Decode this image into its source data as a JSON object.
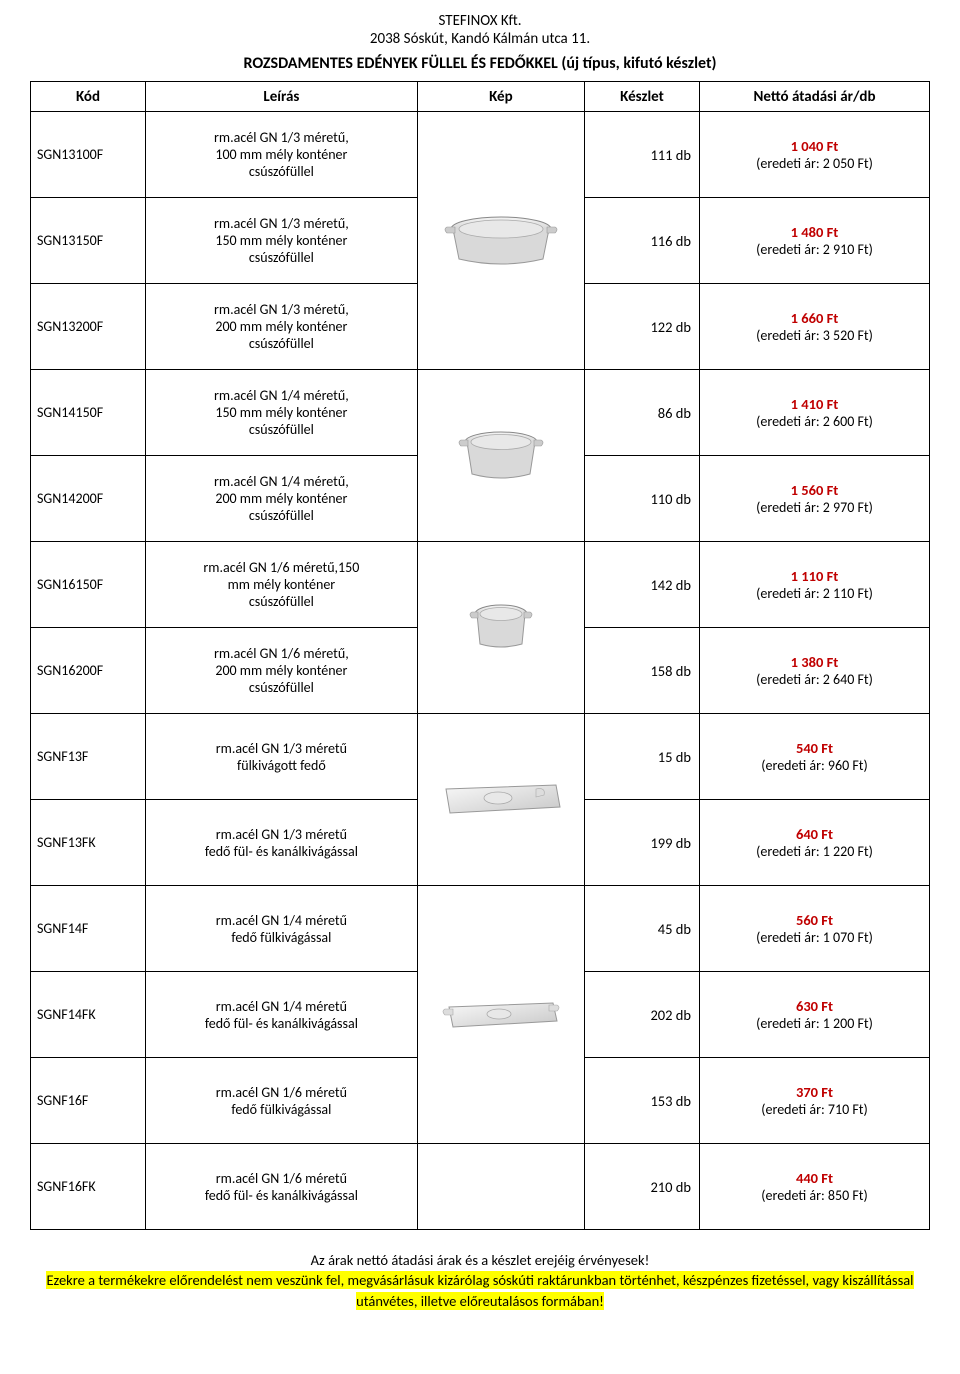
{
  "header": {
    "company": "STEFINOX Kft.",
    "address": "2038 Sóskút, Kandó Kálmán utca 11.",
    "title": "ROZSDAMENTES EDÉNYEK FÜLLEL ÉS FEDŐKKEL (új típus, kifutó készlet)"
  },
  "columns": {
    "kod": "Kód",
    "leiras": "Leírás",
    "kep": "Kép",
    "keszlet": "Készlet",
    "ar": "Nettó átadási ár/db"
  },
  "rows": [
    {
      "kod": "SGN13100F",
      "leiras": "rm.acél GN 1/3 méretű,\n100 mm mély konténer\ncsúszófüllel",
      "keszlet": "111 db",
      "price": "1 040 Ft",
      "orig": "(eredeti ár: 2 050 Ft)",
      "img_group": 0
    },
    {
      "kod": "SGN13150F",
      "leiras": "rm.acél GN 1/3 méretű,\n150 mm mély konténer\ncsúszófüllel",
      "keszlet": "116 db",
      "price": "1 480 Ft",
      "orig": "(eredeti ár: 2 910 Ft)",
      "img_group": 0
    },
    {
      "kod": "SGN13200F",
      "leiras": "rm.acél GN 1/3 méretű,\n200 mm mély konténer\ncsúszófüllel",
      "keszlet": "122 db",
      "price": "1 660 Ft",
      "orig": "(eredeti ár: 3 520 Ft)",
      "img_group": 0
    },
    {
      "kod": "SGN14150F",
      "leiras": "rm.acél GN 1/4 méretű,\n150 mm mély konténer\ncsúszófüllel",
      "keszlet": "86 db",
      "price": "1 410 Ft",
      "orig": "(eredeti ár: 2 600 Ft)",
      "img_group": 1
    },
    {
      "kod": "SGN14200F",
      "leiras": "rm.acél GN 1/4 méretű,\n200 mm mély konténer\ncsúszófüllel",
      "keszlet": "110 db",
      "price": "1 560 Ft",
      "orig": "(eredeti ár: 2 970 Ft)",
      "img_group": 1
    },
    {
      "kod": "SGN16150F",
      "leiras": "rm.acél GN 1/6 méretű,150\nmm mély konténer\ncsúszófüllel",
      "keszlet": "142 db",
      "price": "1 110 Ft",
      "orig": "(eredeti ár: 2 110 Ft)",
      "img_group": 2
    },
    {
      "kod": "SGN16200F",
      "leiras": "rm.acél GN 1/6 méretű,\n200 mm mély konténer\ncsúszófüllel",
      "keszlet": "158 db",
      "price": "1 380 Ft",
      "orig": "(eredeti ár: 2 640 Ft)",
      "img_group": 2
    },
    {
      "kod": "SGNF13F",
      "leiras": "rm.acél GN 1/3 méretű\nfülkivágott fedő",
      "keszlet": "15 db",
      "price": "540 Ft",
      "orig": "(eredeti ár: 960 Ft)",
      "img_group": 3
    },
    {
      "kod": "SGNF13FK",
      "leiras": "rm.acél GN 1/3 méretű\nfedő fül- és kanálkivágással",
      "keszlet": "199 db",
      "price": "640 Ft",
      "orig": "(eredeti ár: 1 220 Ft)",
      "img_group": 3
    },
    {
      "kod": "SGNF14F",
      "leiras": "rm.acél GN 1/4 méretű\nfedő fülkivágással",
      "keszlet": "45 db",
      "price": "560 Ft",
      "orig": "(eredeti ár: 1 070 Ft)",
      "img_group": 4
    },
    {
      "kod": "SGNF14FK",
      "leiras": "rm.acél GN 1/4 méretű\nfedő fül- és kanálkivágással",
      "keszlet": "202 db",
      "price": "630 Ft",
      "orig": "(eredeti ár: 1 200 Ft)",
      "img_group": 4
    },
    {
      "kod": "SGNF16F",
      "leiras": "rm.acél GN 1/6 méretű\nfedő fülkivágással",
      "keszlet": "153 db",
      "price": "370 Ft",
      "orig": "(eredeti ár: 710 Ft)",
      "img_group": 4
    },
    {
      "kod": "SGNF16FK",
      "leiras": "rm.acél GN 1/6 méretű\nfedő fül- és kanálkivágással",
      "keszlet": "210 db",
      "price": "440 Ft",
      "orig": "(eredeti ár: 850 Ft)",
      "img_group": 5
    }
  ],
  "image_groups": [
    {
      "span": 3,
      "icon": "container-large"
    },
    {
      "span": 2,
      "icon": "container-medium"
    },
    {
      "span": 2,
      "icon": "container-small"
    },
    {
      "span": 2,
      "icon": "lid-rect"
    },
    {
      "span": 3,
      "icon": "lid-handle"
    },
    {
      "span": 1,
      "icon": "none"
    }
  ],
  "footer": {
    "line1": "Az árak nettó átadási árak és a készlet erejéig érvényesek!",
    "line2": "Ezekre a termékekre előrendelést nem veszünk fel, megvásárlásuk kizárólag sóskúti raktárunkban történhet, készpénzes fizetéssel, vagy kiszállítással utánvétes, illetve előreutalásos formában!"
  },
  "styling": {
    "price_color": "#c00000",
    "highlight_bg": "#ffff00",
    "border_color": "#000000",
    "background": "#ffffff",
    "font_family": "Calibri, Arial, sans-serif",
    "title_fontsize": 16,
    "body_fontsize": 14.5
  }
}
